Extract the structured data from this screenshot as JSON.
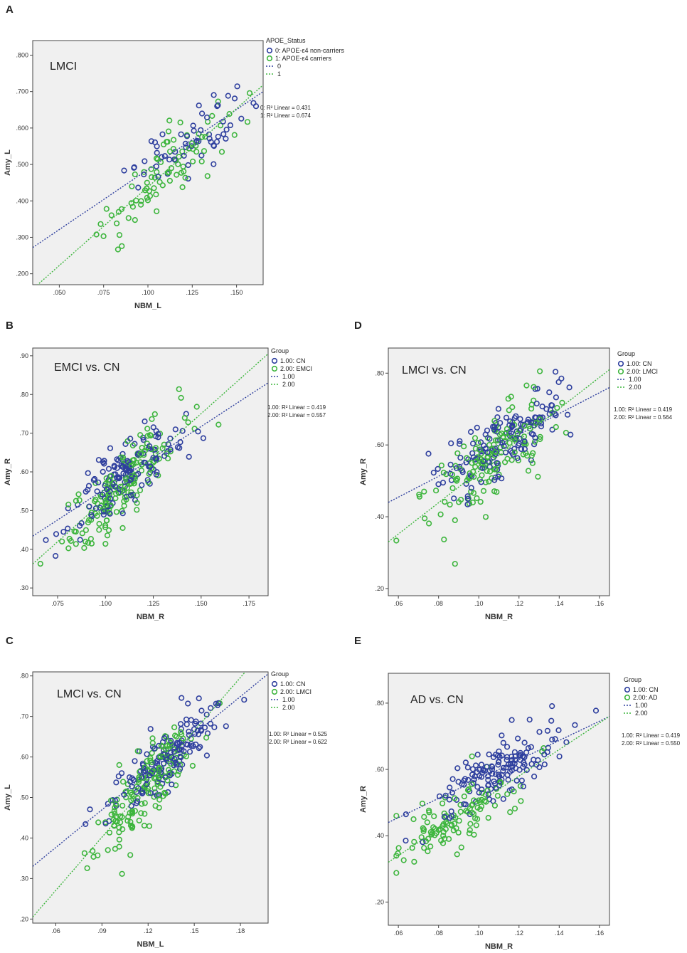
{
  "chart_data": [
    {
      "panel": "A",
      "type": "scatter",
      "title": "LMCI",
      "xlabel": "NBM_L",
      "ylabel": "Amy_L",
      "xlim": [
        0.035,
        0.165
      ],
      "ylim": [
        0.17,
        0.84
      ],
      "xticks": [
        0.05,
        0.075,
        0.1,
        0.125,
        0.15
      ],
      "xtick_labels": [
        ".050",
        ".075",
        ".100",
        ".125",
        ".150"
      ],
      "yticks": [
        0.2,
        0.3,
        0.4,
        0.5,
        0.6,
        0.7,
        0.8
      ],
      "ytick_labels": [
        ".200",
        ".300",
        ".400",
        ".500",
        ".600",
        ".700",
        ".800"
      ],
      "legend_title": "APOE_Status",
      "legend": [
        {
          "code": "0",
          "label": "APOE-ε4 non-carriers",
          "color": "#2e3f9e"
        },
        {
          "code": "1",
          "label": "APOE-ε4 carriers",
          "color": "#3db53d"
        },
        {
          "code": "0",
          "label": "",
          "color": "#2e3f9e",
          "line": true
        },
        {
          "code": "1",
          "label": "",
          "color": "#3db53d",
          "line": true
        }
      ],
      "fit_labels": [
        "0: R² Linear = 0.431",
        "1: R² Linear = 0.674"
      ],
      "fit_lines": [
        {
          "name": "0",
          "color": "#2e3f9e",
          "x": [
            0.035,
            0.165
          ],
          "y": [
            0.272,
            0.7
          ]
        },
        {
          "name": "1",
          "color": "#3db53d",
          "x": [
            0.035,
            0.165
          ],
          "y": [
            0.158,
            0.718
          ]
        }
      ],
      "seed": 11,
      "series": [
        {
          "name": "0",
          "color": "#2e3f9e",
          "n": 60,
          "x_mean": 0.124,
          "x_sd": 0.016,
          "slope": 3.3,
          "intercept": 0.155,
          "noise": 0.045
        },
        {
          "name": "1",
          "color": "#3db53d",
          "n": 85,
          "x_mean": 0.112,
          "x_sd": 0.018,
          "slope": 4.3,
          "intercept": 0.008,
          "noise": 0.045
        }
      ]
    },
    {
      "panel": "B",
      "type": "scatter",
      "title": "EMCI vs. CN",
      "xlabel": "NBM_R",
      "ylabel": "Amy_R",
      "xlim": [
        0.062,
        0.185
      ],
      "ylim": [
        0.28,
        0.92
      ],
      "xticks": [
        0.075,
        0.1,
        0.125,
        0.15,
        0.175
      ],
      "xtick_labels": [
        ".075",
        ".100",
        ".125",
        ".150",
        ".175"
      ],
      "yticks": [
        0.3,
        0.4,
        0.5,
        0.6,
        0.7,
        0.8,
        0.9
      ],
      "ytick_labels": [
        ".30",
        ".40",
        ".50",
        ".60",
        ".70",
        ".80",
        ".90"
      ],
      "legend_title": "Group",
      "legend": [
        {
          "code": "1.00",
          "label": "CN",
          "color": "#2e3f9e"
        },
        {
          "code": "2.00",
          "label": "EMCI",
          "color": "#3db53d"
        },
        {
          "code": "1.00",
          "label": "",
          "color": "#2e3f9e",
          "line": true
        },
        {
          "code": "2.00",
          "label": "",
          "color": "#3db53d",
          "line": true
        }
      ],
      "fit_labels": [
        "1.00: R² Linear = 0.419",
        "2.00: R² Linear = 0.557"
      ],
      "fit_lines": [
        {
          "name": "1.00",
          "color": "#2e3f9e",
          "x": [
            0.062,
            0.185
          ],
          "y": [
            0.434,
            0.83
          ]
        },
        {
          "name": "2.00",
          "color": "#3db53d",
          "x": [
            0.062,
            0.185
          ],
          "y": [
            0.362,
            0.905
          ]
        }
      ],
      "seed": 23,
      "series": [
        {
          "name": "CN",
          "color": "#2e3f9e",
          "n": 150,
          "x_mean": 0.11,
          "x_sd": 0.014,
          "slope": 3.2,
          "intercept": 0.236,
          "noise": 0.04
        },
        {
          "name": "EMCI",
          "color": "#3db53d",
          "n": 160,
          "x_mean": 0.108,
          "x_sd": 0.015,
          "slope": 4.4,
          "intercept": 0.09,
          "noise": 0.042
        }
      ]
    },
    {
      "panel": "C",
      "type": "scatter",
      "title": "LMCI vs. CN",
      "xlabel": "NBM_L",
      "ylabel": "Amy_L",
      "xlim": [
        0.045,
        0.198
      ],
      "ylim": [
        0.19,
        0.81
      ],
      "xticks": [
        0.06,
        0.09,
        0.12,
        0.15,
        0.18
      ],
      "xtick_labels": [
        ".06",
        ".09",
        ".12",
        ".15",
        ".18"
      ],
      "yticks": [
        0.2,
        0.3,
        0.4,
        0.5,
        0.6,
        0.7,
        0.8
      ],
      "ytick_labels": [
        ".20",
        ".30",
        ".40",
        ".50",
        ".60",
        ".70",
        ".80"
      ],
      "legend_title": "Group",
      "legend": [
        {
          "code": "1.00",
          "label": "CN",
          "color": "#2e3f9e"
        },
        {
          "code": "2.00",
          "label": "LMCI",
          "color": "#3db53d"
        },
        {
          "code": "1.00",
          "label": "",
          "color": "#2e3f9e",
          "line": true
        },
        {
          "code": "2.00",
          "label": "",
          "color": "#3db53d",
          "line": true
        }
      ],
      "fit_labels": [
        "1.00: R² Linear = 0.525",
        "2.00: R² Linear = 0.622"
      ],
      "fit_lines": [
        {
          "name": "1.00",
          "color": "#2e3f9e",
          "x": [
            0.045,
            0.198
          ],
          "y": [
            0.33,
            0.805
          ]
        },
        {
          "name": "2.00",
          "color": "#3db53d",
          "x": [
            0.045,
            0.198
          ],
          "y": [
            0.205,
            0.875
          ]
        }
      ],
      "seed": 37,
      "series": [
        {
          "name": "CN",
          "color": "#2e3f9e",
          "n": 150,
          "x_mean": 0.132,
          "x_sd": 0.018,
          "slope": 3.1,
          "intercept": 0.19,
          "noise": 0.04
        },
        {
          "name": "LMCI",
          "color": "#3db53d",
          "n": 165,
          "x_mean": 0.12,
          "x_sd": 0.017,
          "slope": 4.4,
          "intercept": 0.007,
          "noise": 0.045
        }
      ]
    },
    {
      "panel": "D",
      "type": "scatter",
      "title": "LMCI vs. CN",
      "xlabel": "NBM_R",
      "ylabel": "Amy_R",
      "xlim": [
        0.055,
        0.165
      ],
      "ylim": [
        0.18,
        0.87
      ],
      "xticks": [
        0.06,
        0.08,
        0.1,
        0.12,
        0.14,
        0.16
      ],
      "xtick_labels": [
        ".06",
        ".08",
        ".10",
        ".12",
        ".14",
        ".16"
      ],
      "yticks": [
        0.2,
        0.4,
        0.6,
        0.8
      ],
      "ytick_labels": [
        ".20",
        ".40",
        ".60",
        ".80"
      ],
      "legend_title": "Group",
      "legend": [
        {
          "code": "1.00",
          "label": "CN",
          "color": "#2e3f9e"
        },
        {
          "code": "2.00",
          "label": "LMCI",
          "color": "#3db53d"
        },
        {
          "code": "1.00",
          "label": "",
          "color": "#2e3f9e",
          "line": true
        },
        {
          "code": "2.00",
          "label": "",
          "color": "#3db53d",
          "line": true
        }
      ],
      "fit_labels": [
        "1.00: R² Linear = 0.419",
        "2.00: R² Linear = 0.564"
      ],
      "fit_lines": [
        {
          "name": "1.00",
          "color": "#2e3f9e",
          "x": [
            0.055,
            0.165
          ],
          "y": [
            0.44,
            0.76
          ]
        },
        {
          "name": "2.00",
          "color": "#3db53d",
          "x": [
            0.055,
            0.165
          ],
          "y": [
            0.33,
            0.81
          ]
        }
      ],
      "seed": 53,
      "series": [
        {
          "name": "CN",
          "color": "#2e3f9e",
          "n": 150,
          "x_mean": 0.112,
          "x_sd": 0.016,
          "slope": 2.9,
          "intercept": 0.28,
          "noise": 0.045
        },
        {
          "name": "LMCI",
          "color": "#3db53d",
          "n": 150,
          "x_mean": 0.105,
          "x_sd": 0.016,
          "slope": 4.36,
          "intercept": 0.09,
          "noise": 0.06
        }
      ]
    },
    {
      "panel": "E",
      "type": "scatter",
      "title": "AD vs. CN",
      "xlabel": "NBM_R",
      "ylabel": "Amy_R",
      "xlim": [
        0.055,
        0.165
      ],
      "ylim": [
        0.13,
        0.89
      ],
      "xticks": [
        0.06,
        0.08,
        0.1,
        0.12,
        0.14,
        0.16
      ],
      "xtick_labels": [
        ".06",
        ".08",
        ".10",
        ".12",
        ".14",
        ".16"
      ],
      "yticks": [
        0.2,
        0.4,
        0.6,
        0.8
      ],
      "ytick_labels": [
        ".20",
        ".40",
        ".60",
        ".80"
      ],
      "legend_title": "Group",
      "legend": [
        {
          "code": "1.00",
          "label": "CN",
          "color": "#2e3f9e"
        },
        {
          "code": "2.00",
          "label": "AD",
          "color": "#3db53d"
        },
        {
          "code": "1.00",
          "label": "",
          "color": "#2e3f9e",
          "line": true
        },
        {
          "code": "2.00",
          "label": "",
          "color": "#3db53d",
          "line": true
        }
      ],
      "fit_labels": [
        "1.00: R² Linear = 0.419",
        "2.00: R² Linear = 0.550"
      ],
      "fit_lines": [
        {
          "name": "1.00",
          "color": "#2e3f9e",
          "x": [
            0.055,
            0.165
          ],
          "y": [
            0.44,
            0.76
          ]
        },
        {
          "name": "2.00",
          "color": "#3db53d",
          "x": [
            0.055,
            0.165
          ],
          "y": [
            0.32,
            0.76
          ]
        }
      ],
      "seed": 71,
      "series": [
        {
          "name": "CN",
          "color": "#2e3f9e",
          "n": 150,
          "x_mean": 0.112,
          "x_sd": 0.016,
          "slope": 2.9,
          "intercept": 0.28,
          "noise": 0.045
        },
        {
          "name": "AD",
          "color": "#3db53d",
          "n": 110,
          "x_mean": 0.092,
          "x_sd": 0.015,
          "slope": 4.0,
          "intercept": 0.1,
          "noise": 0.045
        }
      ]
    }
  ]
}
